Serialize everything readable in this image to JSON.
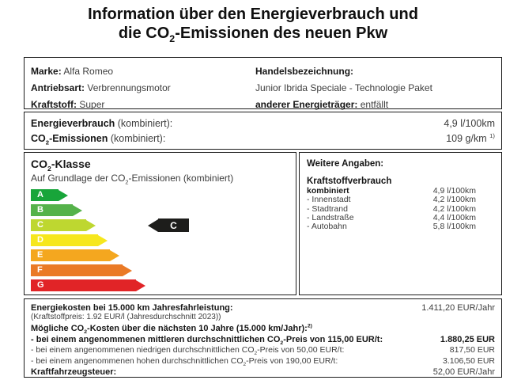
{
  "sub2": "2",
  "title": {
    "line1": "Information über den Energieverbrauch und",
    "line2_pre": "die CO",
    "line2_post": "-Emissionen des neuen Pkw"
  },
  "vehicle": {
    "marke_label": "Marke:",
    "marke_value": "Alfa Romeo",
    "antriebsart_label": "Antriebsart:",
    "antriebsart_value": "Verbrennungsmotor",
    "kraftstoff_label": "Kraftstoff:",
    "kraftstoff_value": "Super",
    "handelsbezeichnung_label": "Handelsbezeichnung:",
    "handelsbezeichnung_value": "Junior Ibrida Speciale - Technologie Paket",
    "energietraeger_label": "anderer Energieträger:",
    "energietraeger_value": "entfällt"
  },
  "consumption": {
    "energieverbrauch_bold": "Energieverbrauch",
    "energieverbrauch_rest": " (kombiniert):",
    "energieverbrauch_value": "4,9 l/100km",
    "co2_pre": "CO",
    "co2_bold_post": "-Emissionen",
    "co2_rest": " (kombiniert):",
    "co2_value": "109 g/km",
    "co2_footnote": "1)"
  },
  "co2_class": {
    "title_pre": "CO",
    "title_post": "-Klasse",
    "subtitle_pre": "Auf Grundlage der CO",
    "subtitle_post": "-Emissionen (kombiniert)",
    "classes": [
      {
        "label": "A",
        "color": "#18a53a",
        "width": 47
      },
      {
        "label": "B",
        "color": "#55b24a",
        "width": 65
      },
      {
        "label": "C",
        "color": "#bed730",
        "width": 82
      },
      {
        "label": "D",
        "color": "#f6e71d",
        "width": 97
      },
      {
        "label": "E",
        "color": "#f4a71f",
        "width": 112
      },
      {
        "label": "F",
        "color": "#ea7a26",
        "width": 128
      },
      {
        "label": "G",
        "color": "#e12427",
        "width": 145
      }
    ],
    "rating": {
      "label": "C",
      "row_index": 2,
      "color": "#1d1d1b"
    }
  },
  "weitere_angaben": {
    "title": "Weitere Angaben:",
    "section_title": "Kraftstoffverbrauch",
    "rows": [
      {
        "label": "kombiniert",
        "value": "4,9 l/100km",
        "bold": true
      },
      {
        "label": "- Innenstadt",
        "value": "4,2 l/100km",
        "bold": false
      },
      {
        "label": "- Stadtrand",
        "value": "4,2 l/100km",
        "bold": false
      },
      {
        "label": "- Landstraße",
        "value": "4,4 l/100km",
        "bold": false
      },
      {
        "label": "- Autobahn",
        "value": "5,8 l/100km",
        "bold": false
      }
    ]
  },
  "costs": {
    "energiekosten_label": "Energiekosten bei 15.000 km Jahresfahrleistung:",
    "energiekosten_value": "1.411,20 EUR/Jahr",
    "kraftstoffpreis_note": "(Kraftstoffpreis: 1.92 EUR/l (Jahresdurchschnitt 2023))",
    "co2_costs_pre": "Mögliche CO",
    "co2_costs_post": "-Kosten über die nächsten 10 Jahre (15.000 km/Jahr):",
    "co2_costs_footnote": "2)",
    "rows": [
      {
        "label_pre": "- bei einem angenommenen mittleren durchschnittlichen CO",
        "label_post": "-Preis von  115,00 EUR/t:",
        "value": "1.880,25 EUR",
        "bold": true
      },
      {
        "label_pre": "- bei einem angenommenen niedrigen durchschnittlichen CO",
        "label_post": "-Preis von  50,00 EUR/t:",
        "value": "817,50 EUR",
        "bold": false
      },
      {
        "label_pre": "- bei einem angenommenen hohen durchschnittlichen CO",
        "label_post": "-Preis von  190,00 EUR/t:",
        "value": "3.106,50 EUR",
        "bold": false
      }
    ],
    "kfz_steuer_label": "Kraftfahrzeugsteuer:",
    "kfz_steuer_value": "52,00 EUR/Jahr"
  }
}
